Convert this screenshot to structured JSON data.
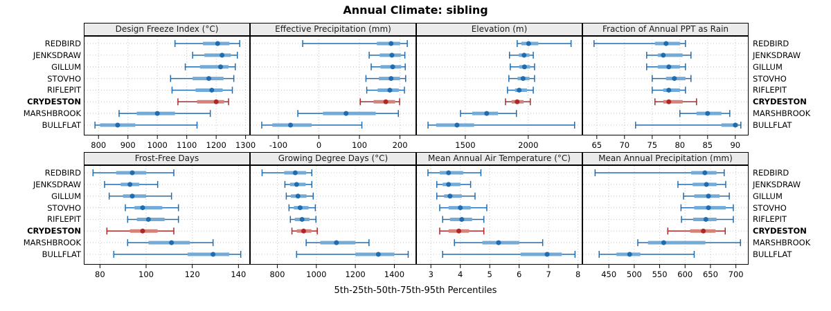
{
  "title": "Annual Climate: sibling",
  "footer": "5th-25th-50th-75th-95th Percentiles",
  "highlight_site": "CRYDESTON",
  "sites": [
    {
      "name": "REDBIRD",
      "bold": false
    },
    {
      "name": "JENKSDRAW",
      "bold": false
    },
    {
      "name": "GILLUM",
      "bold": false
    },
    {
      "name": "STOVHO",
      "bold": false
    },
    {
      "name": "RIFLEPIT",
      "bold": false
    },
    {
      "name": "CRYDESTON",
      "bold": true
    },
    {
      "name": "MARSHBROOK",
      "bold": false
    },
    {
      "name": "BULLFLAT",
      "bold": false
    }
  ],
  "colors": {
    "accent_blue": "#1f6cb0",
    "band_blue": "#73aad6",
    "accent_red": "#b02727",
    "band_red": "#d4827a",
    "strip_bg": "#ebebeb",
    "grid": "#c4c4c4",
    "border": "#000000"
  },
  "chart_data": [
    {
      "type": "dotplot",
      "panel": "top-1",
      "title": "Design Freeze Index (°C)",
      "percentiles": [
        5,
        25,
        50,
        75,
        95
      ],
      "xlim": [
        750,
        1315
      ],
      "ticks": [
        800,
        900,
        1000,
        1100,
        1200,
        1300
      ],
      "series": [
        {
          "name": "REDBIRD",
          "values": [
            1060,
            1155,
            1205,
            1245,
            1280
          ]
        },
        {
          "name": "JENKSDRAW",
          "values": [
            1120,
            1160,
            1220,
            1250,
            1272
          ]
        },
        {
          "name": "GILLUM",
          "values": [
            1095,
            1145,
            1215,
            1242,
            1265
          ]
        },
        {
          "name": "STOVHO",
          "values": [
            1045,
            1120,
            1175,
            1225,
            1260
          ]
        },
        {
          "name": "RIFLEPIT",
          "values": [
            1050,
            1130,
            1185,
            1222,
            1255
          ]
        },
        {
          "name": "CRYDESTON",
          "values": [
            1070,
            1135,
            1200,
            1227,
            1242
          ]
        },
        {
          "name": "MARSHBROOK",
          "values": [
            870,
            930,
            1000,
            1060,
            1180
          ]
        },
        {
          "name": "BULLFLAT",
          "values": [
            788,
            805,
            865,
            925,
            1135
          ]
        }
      ]
    },
    {
      "type": "dotplot",
      "panel": "top-2",
      "title": "Effective Precipitation (mm)",
      "percentiles": [
        5,
        25,
        50,
        75,
        95
      ],
      "xlim": [
        -170,
        240
      ],
      "ticks": [
        -100,
        0,
        100,
        200
      ],
      "series": [
        {
          "name": "REDBIRD",
          "values": [
            -40,
            143,
            178,
            200,
            218
          ]
        },
        {
          "name": "JENKSDRAW",
          "values": [
            124,
            150,
            180,
            202,
            212
          ]
        },
        {
          "name": "GILLUM",
          "values": [
            129,
            152,
            182,
            203,
            213
          ]
        },
        {
          "name": "STOVHO",
          "values": [
            116,
            148,
            178,
            200,
            214
          ]
        },
        {
          "name": "RIFLEPIT",
          "values": [
            118,
            145,
            175,
            197,
            211
          ]
        },
        {
          "name": "CRYDESTON",
          "values": [
            102,
            135,
            165,
            188,
            199
          ]
        },
        {
          "name": "MARSHBROOK",
          "values": [
            -52,
            10,
            67,
            140,
            196
          ]
        },
        {
          "name": "BULLFLAT",
          "values": [
            -141,
            -115,
            -70,
            -18,
            106
          ]
        }
      ]
    },
    {
      "type": "dotplot",
      "panel": "top-3",
      "title": "Elevation (m)",
      "percentiles": [
        5,
        25,
        50,
        75,
        95
      ],
      "xlim": [
        1110,
        2430
      ],
      "ticks": [
        1500,
        2000
      ],
      "series": [
        {
          "name": "REDBIRD",
          "values": [
            1912,
            1945,
            2003,
            2080,
            2340
          ]
        },
        {
          "name": "JENKSDRAW",
          "values": [
            1851,
            1925,
            1967,
            2010,
            2040
          ]
        },
        {
          "name": "GILLUM",
          "values": [
            1857,
            1928,
            1970,
            2015,
            2050
          ]
        },
        {
          "name": "STOVHO",
          "values": [
            1846,
            1915,
            1959,
            2010,
            2050
          ]
        },
        {
          "name": "RIFLEPIT",
          "values": [
            1835,
            1895,
            1928,
            1990,
            2040
          ]
        },
        {
          "name": "CRYDESTON",
          "values": [
            1819,
            1868,
            1912,
            1962,
            2016
          ]
        },
        {
          "name": "MARSHBROOK",
          "values": [
            1462,
            1555,
            1670,
            1760,
            1906
          ]
        },
        {
          "name": "BULLFLAT",
          "values": [
            1204,
            1268,
            1434,
            1570,
            2368
          ]
        }
      ]
    },
    {
      "type": "dotplot",
      "panel": "top-4",
      "title": "Fraction of Annual PPT as Rain",
      "percentiles": [
        5,
        25,
        50,
        75,
        95
      ],
      "xlim": [
        62.4,
        92.4
      ],
      "ticks": [
        65,
        70,
        75,
        80,
        85,
        90
      ],
      "series": [
        {
          "name": "REDBIRD",
          "values": [
            64.5,
            75.5,
            77.5,
            80,
            81
          ]
        },
        {
          "name": "JENKSDRAW",
          "values": [
            74,
            76,
            77,
            80.5,
            82
          ]
        },
        {
          "name": "GILLUM",
          "values": [
            74,
            76,
            78,
            80,
            81
          ]
        },
        {
          "name": "STOVHO",
          "values": [
            75,
            77.5,
            79,
            81,
            82
          ]
        },
        {
          "name": "RIFLEPIT",
          "values": [
            75,
            77,
            78,
            80,
            81
          ]
        },
        {
          "name": "CRYDESTON",
          "values": [
            75.5,
            77,
            78,
            80.5,
            83
          ]
        },
        {
          "name": "MARSHBROOK",
          "values": [
            80,
            83,
            85,
            87.5,
            89
          ]
        },
        {
          "name": "BULLFLAT",
          "values": [
            72,
            87.5,
            90,
            90.5,
            91
          ]
        }
      ]
    },
    {
      "type": "dotplot",
      "panel": "bottom-1",
      "title": "Frost-Free Days",
      "percentiles": [
        5,
        25,
        50,
        75,
        95
      ],
      "xlim": [
        73,
        145
      ],
      "ticks": [
        80,
        100,
        120,
        140
      ],
      "series": [
        {
          "name": "REDBIRD",
          "values": [
            77,
            87,
            94,
            100,
            112
          ]
        },
        {
          "name": "JENKSDRAW",
          "values": [
            82,
            89,
            93,
            97,
            105
          ]
        },
        {
          "name": "GILLUM",
          "values": [
            84,
            90,
            94,
            100,
            111
          ]
        },
        {
          "name": "STOVHO",
          "values": [
            91,
            95,
            98.5,
            107,
            114
          ]
        },
        {
          "name": "RIFLEPIT",
          "values": [
            92,
            96,
            101,
            108,
            114
          ]
        },
        {
          "name": "CRYDESTON",
          "values": [
            83,
            93,
            98.5,
            105,
            112
          ]
        },
        {
          "name": "MARSHBROOK",
          "values": [
            92,
            101,
            111,
            119,
            129
          ]
        },
        {
          "name": "BULLFLAT",
          "values": [
            86,
            118,
            129,
            136,
            141
          ]
        }
      ]
    },
    {
      "type": "dotplot",
      "panel": "bottom-2",
      "title": "Growing Degree Days (°C)",
      "percentiles": [
        5,
        25,
        50,
        75,
        95
      ],
      "xlim": [
        660,
        1512
      ],
      "ticks": [
        800,
        1000,
        1200,
        1400
      ],
      "series": [
        {
          "name": "REDBIRD",
          "values": [
            722,
            835,
            892,
            948,
            977
          ]
        },
        {
          "name": "JENKSDRAW",
          "values": [
            839,
            865,
            899,
            945,
            977
          ]
        },
        {
          "name": "GILLUM",
          "values": [
            846,
            870,
            906,
            950,
            984
          ]
        },
        {
          "name": "STOVHO",
          "values": [
            860,
            885,
            917,
            960,
            995
          ]
        },
        {
          "name": "RIFLEPIT",
          "values": [
            867,
            890,
            927,
            965,
            998
          ]
        },
        {
          "name": "CRYDESTON",
          "values": [
            875,
            900,
            935,
            975,
            1005
          ]
        },
        {
          "name": "MARSHBROOK",
          "values": [
            948,
            1020,
            1103,
            1200,
            1270
          ]
        },
        {
          "name": "BULLFLAT",
          "values": [
            899,
            1200,
            1318,
            1400,
            1471
          ]
        }
      ]
    },
    {
      "type": "dotplot",
      "panel": "bottom-3",
      "title": "Mean Annual Air Temperature (°C)",
      "percentiles": [
        5,
        25,
        50,
        75,
        95
      ],
      "xlim": [
        2.5,
        8.15
      ],
      "ticks": [
        3,
        4,
        5,
        6,
        7,
        8
      ],
      "series": [
        {
          "name": "REDBIRD",
          "values": [
            2.9,
            3.3,
            3.6,
            4.1,
            4.7
          ]
        },
        {
          "name": "JENKSDRAW",
          "values": [
            3.2,
            3.4,
            3.6,
            4.0,
            4.35
          ]
        },
        {
          "name": "GILLUM",
          "values": [
            3.2,
            3.45,
            3.65,
            4.05,
            4.5
          ]
        },
        {
          "name": "STOVHO",
          "values": [
            3.3,
            3.6,
            4.0,
            4.35,
            4.9
          ]
        },
        {
          "name": "RIFLEPIT",
          "values": [
            3.4,
            3.65,
            4.05,
            4.4,
            4.8
          ]
        },
        {
          "name": "CRYDESTON",
          "values": [
            3.3,
            3.6,
            3.95,
            4.3,
            4.8
          ]
        },
        {
          "name": "MARSHBROOK",
          "values": [
            3.8,
            4.75,
            5.3,
            6.0,
            6.8
          ]
        },
        {
          "name": "BULLFLAT",
          "values": [
            3.4,
            6.05,
            6.95,
            7.45,
            7.9
          ]
        }
      ]
    },
    {
      "type": "dotplot",
      "panel": "bottom-4",
      "title": "Mean Annual Precipitation (mm)",
      "percentiles": [
        5,
        25,
        50,
        75,
        95
      ],
      "xlim": [
        398,
        725
      ],
      "ticks": [
        450,
        500,
        550,
        600,
        650,
        700
      ],
      "series": [
        {
          "name": "REDBIRD",
          "values": [
            423,
            612,
            639,
            662,
            677
          ]
        },
        {
          "name": "JENKSDRAW",
          "values": [
            586,
            615,
            642,
            662,
            680
          ]
        },
        {
          "name": "GILLUM",
          "values": [
            597,
            618,
            646,
            668,
            687
          ]
        },
        {
          "name": "STOVHO",
          "values": [
            592,
            618,
            646,
            680,
            695
          ]
        },
        {
          "name": "RIFLEPIT",
          "values": [
            593,
            616,
            641,
            662,
            695
          ]
        },
        {
          "name": "CRYDESTON",
          "values": [
            566,
            610,
            636,
            660,
            679
          ]
        },
        {
          "name": "MARSHBROOK",
          "values": [
            507,
            527,
            558,
            640,
            709
          ]
        },
        {
          "name": "BULLFLAT",
          "values": [
            431,
            465,
            491,
            512,
            618
          ]
        }
      ]
    }
  ]
}
